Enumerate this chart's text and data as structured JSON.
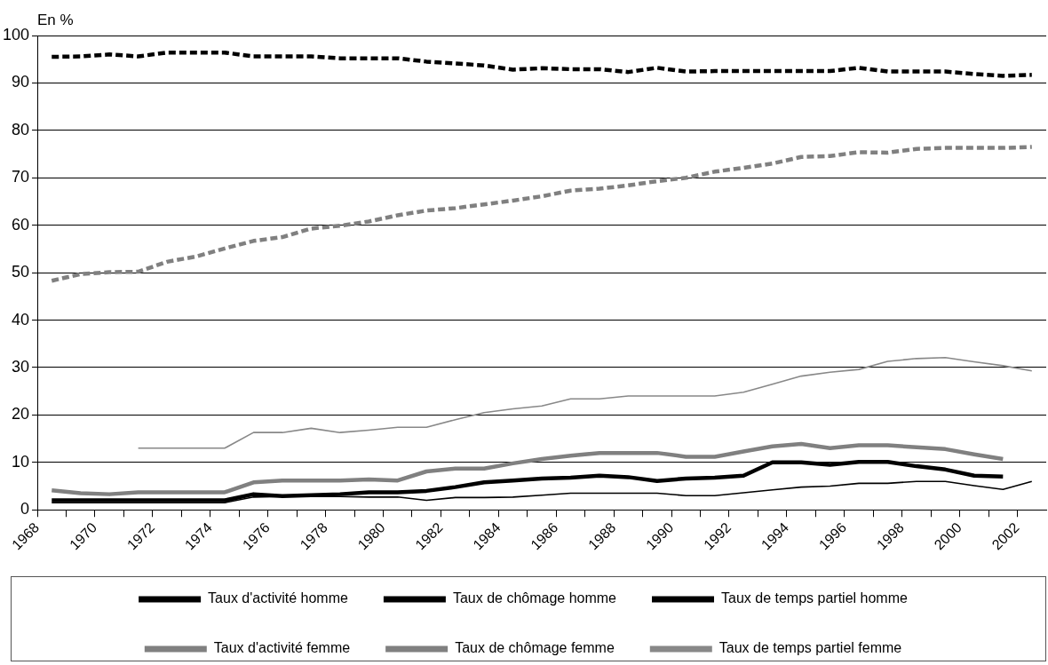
{
  "chart_data": {
    "type": "line",
    "ylabel": "En %",
    "x": [
      1968.5,
      1969.5,
      1970.5,
      1971.5,
      1972.5,
      1973.5,
      1974.5,
      1975.5,
      1976.5,
      1977.5,
      1978.5,
      1979.5,
      1980.5,
      1981.5,
      1982.5,
      1983.5,
      1984.5,
      1985.5,
      1986.5,
      1987.5,
      1988.5,
      1989.5,
      1990.5,
      1991.5,
      1992.5,
      1993.5,
      1994.5,
      1995.5,
      1996.5,
      1997.5,
      1998.5,
      1999.5,
      2000.5,
      2001.5,
      2002.5
    ],
    "series": [
      {
        "name": "Taux d'activité homme",
        "color": "#000000",
        "line_style": "dashed",
        "values": [
          95.5,
          95.6,
          96,
          95.6,
          96.4,
          96.4,
          96.4,
          95.6,
          95.6,
          95.6,
          95.2,
          95.2,
          95.2,
          94.5,
          94.1,
          93.7,
          92.8,
          93.1,
          92.9,
          92.9,
          92.3,
          93.2,
          92.4,
          92.5,
          92.5,
          92.5,
          92.5,
          92.5,
          93.2,
          92.4,
          92.4,
          92.4,
          91.9,
          91.5,
          91.7
        ]
      },
      {
        "name": "Taux de chômage homme",
        "color": "#000000",
        "line_style": "solid",
        "values": [
          2.0,
          2.0,
          2.0,
          2.0,
          2.0,
          2.0,
          2.0,
          3.3,
          2.9,
          3.1,
          3.3,
          3.7,
          3.7,
          4.0,
          4.8,
          5.8,
          6.2,
          6.6,
          6.8,
          7.2,
          6.9,
          6.1,
          6.6,
          6.8,
          7.2,
          10.0,
          10.0,
          9.5,
          10.1,
          10.1,
          9.2,
          8.5,
          7.2,
          7.0,
          null
        ]
      },
      {
        "name": "Taux de temps partiel homme",
        "color": "#000000",
        "line_style": "solid",
        "values": [
          1.5,
          1.5,
          1.5,
          1.5,
          1.5,
          1.5,
          1.5,
          2.7,
          2.8,
          2.8,
          2.8,
          2.7,
          2.7,
          2.0,
          2.6,
          2.6,
          2.7,
          3.1,
          3.5,
          3.5,
          3.5,
          3.5,
          3.0,
          3.0,
          3.6,
          4.2,
          4.8,
          5.0,
          5.6,
          5.6,
          6.0,
          6.0,
          5.1,
          4.3,
          6.0
        ]
      },
      {
        "name": "Taux d'activité femme",
        "color": "#808080",
        "line_style": "dashed",
        "values": [
          48.3,
          49.7,
          50.1,
          50.2,
          52.3,
          53.4,
          55.1,
          56.7,
          57.5,
          59.3,
          59.9,
          60.8,
          62.1,
          63.1,
          63.6,
          64.4,
          65.2,
          66.1,
          67.3,
          67.7,
          68.4,
          69.3,
          70.0,
          71.3,
          72.1,
          73.0,
          74.4,
          74.6,
          75.4,
          75.3,
          76.1,
          76.3,
          76.3,
          76.3,
          76.5
        ]
      },
      {
        "name": "Taux de chômage femme",
        "color": "#808080",
        "line_style": "solid",
        "values": [
          4.1,
          3.5,
          3.3,
          3.7,
          3.7,
          3.7,
          3.7,
          5.8,
          6.2,
          6.2,
          6.2,
          6.4,
          6.2,
          8.1,
          8.7,
          8.7,
          9.8,
          10.7,
          11.4,
          12.0,
          12.0,
          12.0,
          11.2,
          11.2,
          12.3,
          13.4,
          13.9,
          13.0,
          13.6,
          13.6,
          13.2,
          12.8,
          11.7,
          10.7,
          null
        ]
      },
      {
        "name": "Taux de temps partiel femme",
        "color": "#888888",
        "line_style": "solid",
        "values": [
          null,
          null,
          null,
          13.0,
          13.0,
          13.0,
          13.0,
          16.3,
          16.3,
          17.2,
          16.3,
          16.8,
          17.4,
          17.4,
          19.0,
          20.5,
          21.3,
          21.9,
          23.4,
          23.4,
          24.0,
          24.0,
          24.0,
          24.0,
          24.8,
          26.5,
          28.2,
          29.0,
          29.6,
          31.3,
          31.9,
          32.1,
          31.2,
          30.4,
          29.3
        ]
      }
    ],
    "xlim": [
      1968,
      2003
    ],
    "xticks": [
      1968,
      {
        "value": 1969,
        "label": null
      },
      1970,
      {
        "value": 1971,
        "label": null
      },
      1972,
      {
        "value": 1973,
        "label": null
      },
      1974,
      {
        "value": 1975,
        "label": null
      },
      1976,
      {
        "value": 1977,
        "label": null
      },
      1978,
      {
        "value": 1979,
        "label": null
      },
      1980,
      {
        "value": 1981,
        "label": null
      },
      1982,
      {
        "value": 1983,
        "label": null
      },
      1984,
      {
        "value": 1985,
        "label": null
      },
      1986,
      {
        "value": 1987,
        "label": null
      },
      1988,
      {
        "value": 1989,
        "label": null
      },
      1990,
      {
        "value": 1991,
        "label": null
      },
      1992,
      {
        "value": 1993,
        "label": null
      },
      1994,
      {
        "value": 1995,
        "label": null
      },
      1996,
      {
        "value": 1997,
        "label": null
      },
      1998,
      {
        "value": 1999,
        "label": null
      },
      2000,
      {
        "value": 2001,
        "label": null
      },
      2002
    ],
    "ylim": [
      0,
      100
    ],
    "yticks": [
      0,
      10,
      20,
      30,
      40,
      50,
      60,
      70,
      80,
      90,
      100
    ],
    "grid": "y",
    "legend": "bottom",
    "marker": "none"
  }
}
